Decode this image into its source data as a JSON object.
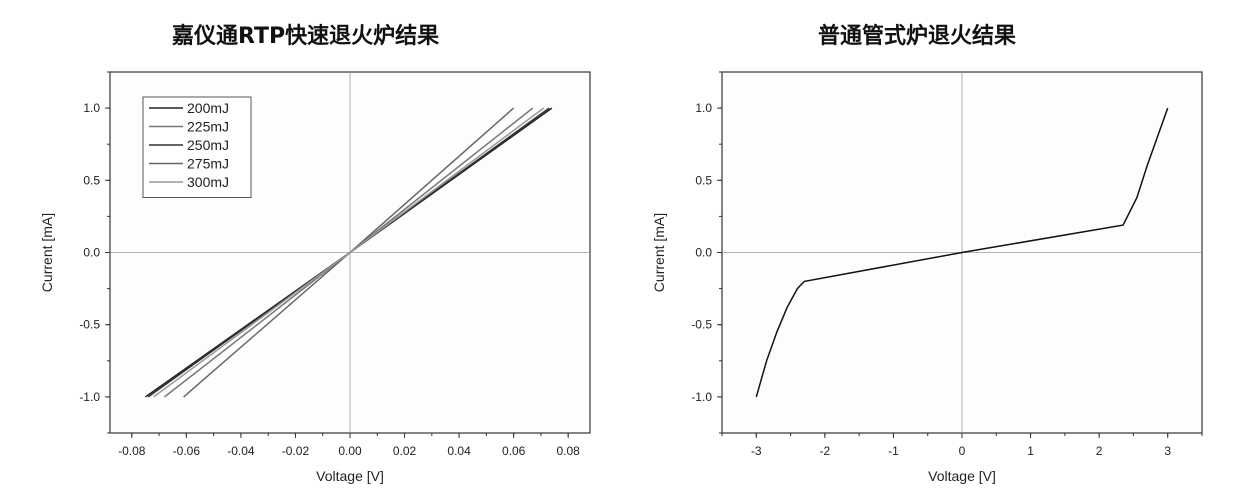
{
  "page": {
    "left_title": "嘉仪通RTP快速退火炉结果",
    "right_title": "普通管式炉退火结果"
  },
  "chart_data": [
    {
      "type": "line",
      "title": "嘉仪通RTP快速退火炉结果",
      "xlabel": "Voltage [V]",
      "ylabel": "Current [mA]",
      "xlim": [
        -0.088,
        0.088
      ],
      "ylim": [
        -1.25,
        1.25
      ],
      "xticks": [
        "-0.08",
        "-0.06",
        "-0.04",
        "-0.02",
        "0.00",
        "0.02",
        "0.04",
        "0.06",
        "0.08"
      ],
      "yticks": [
        "-1.0",
        "-0.5",
        "0.0",
        "0.5",
        "1.0"
      ],
      "grid": false,
      "legend": "top-left",
      "series": [
        {
          "name": "200mJ",
          "color": "#222222",
          "x": [
            -0.075,
            0.0,
            0.074
          ],
          "y": [
            -1.0,
            0.0,
            1.0
          ]
        },
        {
          "name": "225mJ",
          "color": "#777777",
          "x": [
            -0.068,
            0.0,
            0.067
          ],
          "y": [
            -1.0,
            0.0,
            1.0
          ]
        },
        {
          "name": "250mJ",
          "color": "#333333",
          "x": [
            -0.074,
            0.0,
            0.073
          ],
          "y": [
            -1.0,
            0.0,
            1.0
          ]
        },
        {
          "name": "275mJ",
          "color": "#666666",
          "x": [
            -0.061,
            0.0,
            0.06
          ],
          "y": [
            -1.0,
            0.0,
            1.0
          ]
        },
        {
          "name": "300mJ",
          "color": "#999999",
          "x": [
            -0.072,
            0.0,
            0.071
          ],
          "y": [
            -1.0,
            0.0,
            1.0
          ]
        }
      ]
    },
    {
      "type": "line",
      "title": "普通管式炉退火结果",
      "xlabel": "Voltage [V]",
      "ylabel": "Current [mA]",
      "xlim": [
        -3.5,
        3.5
      ],
      "ylim": [
        -1.25,
        1.25
      ],
      "xticks": [
        "-3",
        "-2",
        "-1",
        "0",
        "1",
        "2",
        "3"
      ],
      "yticks": [
        "-1.0",
        "-0.5",
        "0.0",
        "0.5",
        "1.0"
      ],
      "grid": false,
      "series": [
        {
          "name": "",
          "color": "#111111",
          "x": [
            -3.0,
            -2.85,
            -2.7,
            -2.55,
            -2.4,
            -2.3,
            0.0,
            2.35,
            2.55,
            2.7,
            2.85,
            3.0
          ],
          "y": [
            -1.0,
            -0.75,
            -0.55,
            -0.38,
            -0.25,
            -0.2,
            0.0,
            0.19,
            0.38,
            0.6,
            0.8,
            1.0
          ]
        }
      ]
    }
  ]
}
